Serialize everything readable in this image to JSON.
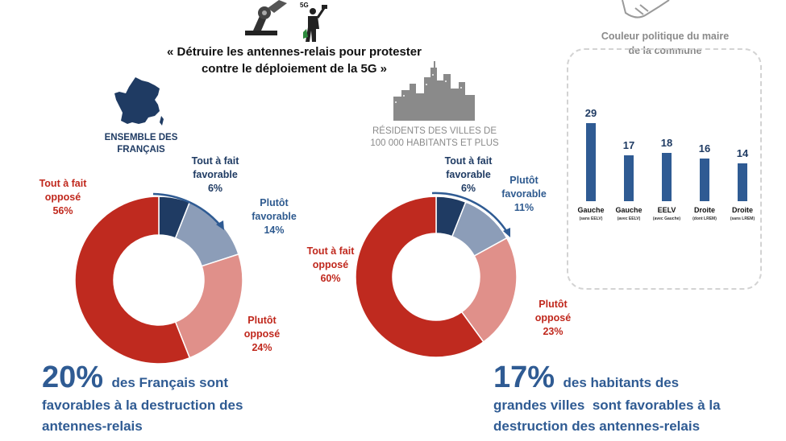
{
  "title": "« Détruire les antennes-relais pour protester contre le déploiement de la 5G »",
  "icon_labels": {
    "antenna_icon": "5G"
  },
  "icons": [
    "robot-antenna-icon",
    "person-hammer-icon",
    "france-map-icon",
    "city-skyline-icon",
    "handshake-icon"
  ],
  "colors": {
    "tout_a_fait_favorable": "#1f3b63",
    "plutot_favorable": "#8c9db8",
    "plutot_oppose": "#e0908a",
    "tout_a_fait_oppose": "#bf2a1f",
    "bar": "#2f5b93"
  },
  "left_group": {
    "label": "ENSEMBLE DES FRANÇAIS",
    "summary_pct": "20%",
    "summary_text1": "des Français sont",
    "summary_text2": "favorables à la destruction des",
    "summary_text3": "antennes-relais"
  },
  "right_group": {
    "label1": "RÉSIDENTS DES VILLES DE",
    "label2": "100 000 HABITANTS ET PLUS",
    "summary_pct": "17%",
    "summary_text1": "des habitants des",
    "summary_text2": "grandes villes  sont favorables à la",
    "summary_text3": "destruction des antennes-relais"
  },
  "bar_panel": {
    "title": "Couleur politique du maire de la commune"
  },
  "chart_data": [
    {
      "type": "pie",
      "categories": [
        "Tout à fait favorable",
        "Plutôt favorable",
        "Plutôt opposé",
        "Tout à fait opposé"
      ],
      "values": [
        6,
        14,
        24,
        56
      ],
      "labels": [
        {
          "name": "Tout à fait favorable",
          "pct": "6%"
        },
        {
          "name": "Plutôt favorable",
          "pct": "14%"
        },
        {
          "name": "Plutôt opposé",
          "pct": "24%"
        },
        {
          "name": "Tout à fait opposé",
          "pct": "56%"
        }
      ]
    },
    {
      "type": "pie",
      "categories": [
        "Tout à fait favorable",
        "Plutôt favorable",
        "Plutôt opposé",
        "Tout à fait opposé"
      ],
      "values": [
        6,
        11,
        23,
        60
      ],
      "labels": [
        {
          "name": "Tout à fait favorable",
          "pct": "6%"
        },
        {
          "name": "Plutôt favorable",
          "pct": "11%"
        },
        {
          "name": "Plutôt opposé",
          "pct": "23%"
        },
        {
          "name": "Tout à fait opposé",
          "pct": "60%"
        }
      ]
    },
    {
      "type": "bar",
      "categories": [
        "Gauche",
        "Gauche",
        "EELV",
        "Droite",
        "Droite"
      ],
      "subcategories": [
        "(sans EELV)",
        "(avec EELV)",
        "(avec Gauche)",
        "(dont LREM)",
        "(sans LREM)"
      ],
      "values": [
        29,
        17,
        18,
        16,
        14
      ],
      "ylim": [
        0,
        30
      ]
    }
  ]
}
